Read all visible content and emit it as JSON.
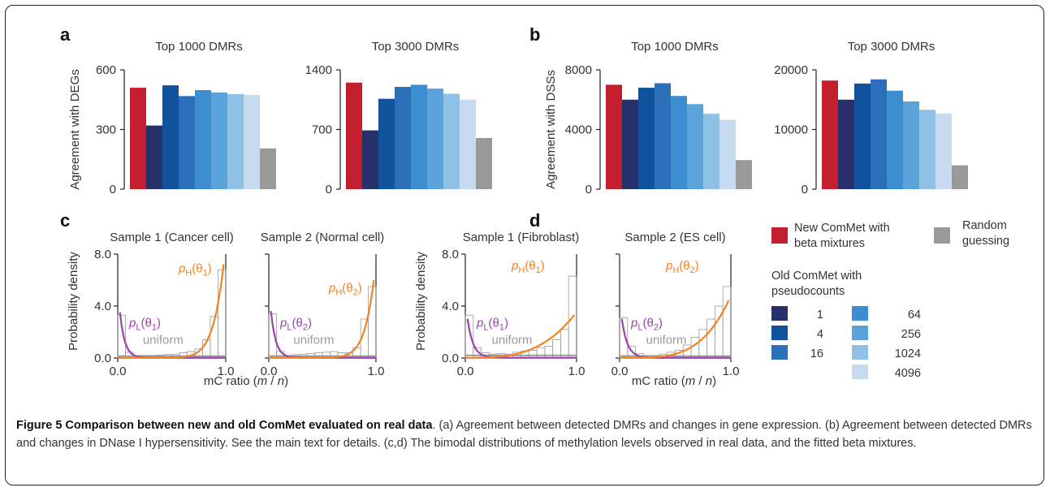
{
  "colors": {
    "new": "#c41f2e",
    "random": "#999999",
    "pc1": "#27306b",
    "pc4": "#11529c",
    "pc16": "#2b6fba",
    "pc64": "#3d8ed0",
    "pc256": "#5aa3db",
    "pc1024": "#8ec1e5",
    "pc4096": "#c6dbf0",
    "purple": "#9b41ad",
    "orange": "#f58220",
    "gray_line": "#9a9a9a"
  },
  "panels": {
    "a_label": "a",
    "b_label": "b",
    "c_label": "c",
    "d_label": "d"
  },
  "chart_data": [
    {
      "type": "bar",
      "panel": "a",
      "title": "Top 1000 DMRs",
      "ylabel": "Agreement with DEGs",
      "ylim": [
        0,
        600
      ],
      "yticks": [
        "0",
        "300",
        "600"
      ],
      "categories": [
        "New ComMet with beta mixtures",
        "1",
        "4",
        "16",
        "64",
        "256",
        "1024",
        "4096",
        "Random guessing"
      ],
      "values": [
        510,
        320,
        522,
        468,
        498,
        486,
        478,
        474,
        205
      ]
    },
    {
      "type": "bar",
      "panel": "a",
      "title": "Top 3000 DMRs",
      "ylabel": "",
      "ylim": [
        0,
        1400
      ],
      "yticks": [
        "0",
        "700",
        "1400"
      ],
      "categories": [
        "New ComMet with beta mixtures",
        "1",
        "4",
        "16",
        "64",
        "256",
        "1024",
        "4096",
        "Random guessing"
      ],
      "values": [
        1250,
        690,
        1060,
        1200,
        1225,
        1180,
        1120,
        1050,
        600
      ]
    },
    {
      "type": "bar",
      "panel": "b",
      "title": "Top 1000 DMRs",
      "ylabel": "Agreement with DSSs",
      "ylim": [
        0,
        8000
      ],
      "yticks": [
        "0",
        "4000",
        "8000"
      ],
      "categories": [
        "New ComMet with beta mixtures",
        "1",
        "4",
        "16",
        "64",
        "256",
        "1024",
        "4096",
        "Random guessing"
      ],
      "values": [
        7000,
        6000,
        6800,
        7100,
        6250,
        5700,
        5050,
        4650,
        1950
      ]
    },
    {
      "type": "bar",
      "panel": "b",
      "title": "Top 3000 DMRs",
      "ylabel": "",
      "ylim": [
        0,
        20000
      ],
      "yticks": [
        "0",
        "10000",
        "20000"
      ],
      "categories": [
        "New ComMet with beta mixtures",
        "1",
        "4",
        "16",
        "64",
        "256",
        "1024",
        "4096",
        "Random guessing"
      ],
      "values": [
        18200,
        15000,
        17700,
        18400,
        16500,
        14700,
        13300,
        12700,
        4000
      ]
    },
    {
      "type": "line",
      "panel": "c",
      "title": "Sample 1 (Cancer cell)",
      "xlabel": "",
      "ylabel": "Probability density",
      "xlim": [
        0,
        1
      ],
      "ylim": [
        0,
        8
      ],
      "xticks": [
        "0.0",
        "1.0"
      ],
      "yticks": [
        "0.0",
        "4.0",
        "8.0"
      ],
      "hist_bins": [
        3.3,
        0.45,
        0.2,
        0.2,
        0.2,
        0.22,
        0.28,
        0.3,
        0.4,
        0.5,
        0.7,
        1.4,
        3.2,
        6.8
      ],
      "low_peak": 3.5,
      "low_rate": 22,
      "high_peak": 7.2,
      "high_exp": 10,
      "uniform_level": 0.15,
      "labels": {
        "low": "pL(θ1)",
        "high": "pH(θ1)",
        "uniform": "uniform"
      }
    },
    {
      "type": "line",
      "panel": "c",
      "title": "Sample 2 (Normal cell)",
      "xlabel": "",
      "ylabel": "",
      "xlim": [
        0,
        1
      ],
      "ylim": [
        0,
        8
      ],
      "xticks": [
        "0.0",
        "1.0"
      ],
      "yticks": [],
      "hist_bins": [
        3.4,
        0.5,
        0.2,
        0.25,
        0.3,
        0.35,
        0.4,
        0.45,
        0.5,
        0.4,
        0.4,
        0.8,
        3.0,
        5.5
      ],
      "low_peak": 3.6,
      "low_rate": 22,
      "high_peak": 6.0,
      "high_exp": 11,
      "uniform_level": 0.15,
      "labels": {
        "low": "pL(θ2)",
        "high": "pH(θ2)",
        "uniform": "uniform"
      }
    },
    {
      "type": "line",
      "panel": "d",
      "title": "Sample 1 (Fibroblast)",
      "xlabel": "",
      "ylabel": "Probability density",
      "xlim": [
        0,
        1
      ],
      "ylim": [
        0,
        8
      ],
      "xticks": [
        "0.0",
        "1.0"
      ],
      "yticks": [
        "0.0",
        "4.0",
        "8.0"
      ],
      "hist_bins": [
        3.3,
        0.8,
        0.4,
        0.3,
        0.35,
        0.3,
        0.45,
        0.55,
        0.6,
        0.8,
        0.9,
        1.4,
        2.2,
        6.3
      ],
      "low_peak": 3.0,
      "low_rate": 20,
      "high_peak": 3.3,
      "high_exp": 3.2,
      "uniform_level": 0.2,
      "labels": {
        "low": "pL(θ1)",
        "high": "pH(θ1)",
        "uniform": "uniform"
      }
    },
    {
      "type": "line",
      "panel": "d",
      "title": "Sample 2 (ES cell)",
      "xlabel": "",
      "ylabel": "",
      "xlim": [
        0,
        1
      ],
      "ylim": [
        0,
        8
      ],
      "xticks": [
        "0.0",
        "1.0"
      ],
      "yticks": [],
      "hist_bins": [
        3.1,
        0.9,
        0.35,
        0.2,
        0.2,
        0.3,
        0.45,
        0.6,
        1.0,
        1.6,
        2.2,
        3.0,
        4.0,
        5.5
      ],
      "low_peak": 3.0,
      "low_rate": 20,
      "high_peak": 4.4,
      "high_exp": 4,
      "uniform_level": 0.15,
      "labels": {
        "low": "pL(θ2)",
        "high": "pH(θ2)",
        "uniform": "uniform"
      }
    }
  ],
  "xaxis_c": "mC ratio (m / n)",
  "xaxis_d": "mC ratio (m / n)",
  "legend": {
    "new_label_1": "New ComMet with",
    "new_label_2": "beta mixtures",
    "random_label_1": "Random",
    "random_label_2": "guessing",
    "old_title_1": "Old ComMet with",
    "old_title_2": "pseudocounts",
    "pseudocounts": [
      "1",
      "4",
      "16",
      "64",
      "256",
      "1024",
      "4096"
    ]
  },
  "caption": {
    "title": "Figure 5 Comparison between new and old ComMet evaluated on real data",
    "body": ". (a) Agreement between detected DMRs and changes in gene expression. (b) Agreement between detected DMRs and changes in DNase I hypersensitivity. See the main text for details. (c,d) The bimodal distributions of methylation levels observed in real data, and the fitted beta mixtures."
  }
}
